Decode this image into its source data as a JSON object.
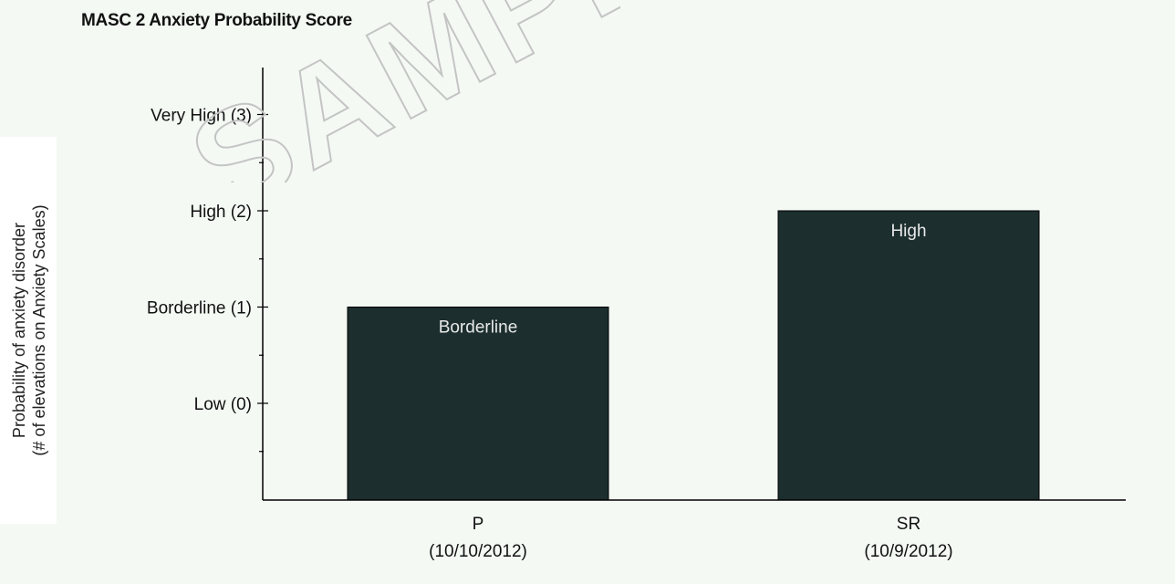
{
  "chart_data": {
    "type": "bar",
    "title": "MASC 2 Anxiety Probability Score",
    "ylabel_line1": "Probability of anxiety disorder",
    "ylabel_line2": "(# of elevations on Anxiety Scales)",
    "xlabel": "",
    "ylim": [
      -1,
      3.5
    ],
    "yticks": [
      {
        "value": 0,
        "label": "Low (0)"
      },
      {
        "value": 1,
        "label": "Borderline (1)"
      },
      {
        "value": 2,
        "label": "High (2)"
      },
      {
        "value": 3,
        "label": "Very High (3)"
      }
    ],
    "minor_ticks": [
      -0.5,
      0.5,
      1.5,
      2.5
    ],
    "categories": [
      {
        "name": "P",
        "date": "(10/10/2012)"
      },
      {
        "name": "SR",
        "date": "(10/9/2012)"
      }
    ],
    "values": [
      1,
      2
    ],
    "data_labels": [
      "Borderline",
      "High"
    ],
    "bar_color": "#1c2e2e",
    "grid": false
  },
  "watermark": "SAMPLE"
}
